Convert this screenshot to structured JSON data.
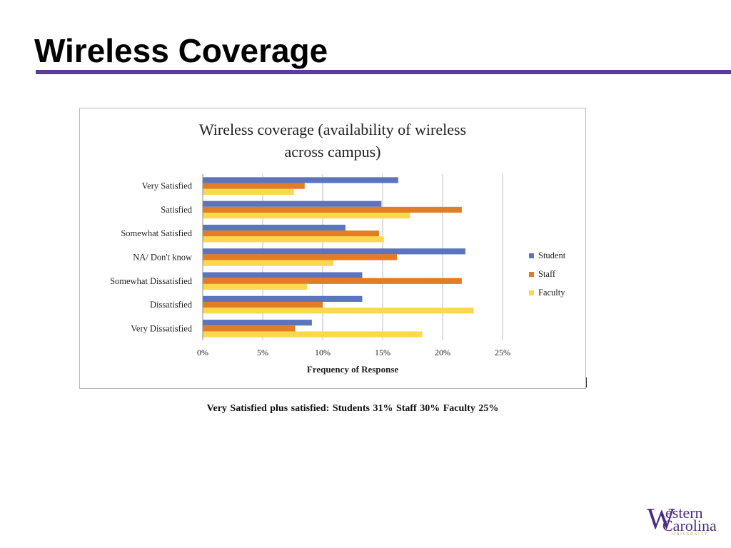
{
  "slide": {
    "title": "Wireless Coverage",
    "summary": "Very Satisfied plus satisfied: Students 31%   Staff 30%   Faculty 25%"
  },
  "logo": {
    "mark": "W",
    "line1": "estern",
    "line2": "Carolina",
    "line3": "UNIVERSITY"
  },
  "colors": {
    "title_rule": "#5b3b9a",
    "student": "#5b74c0",
    "staff": "#e37d24",
    "faculty": "#fcd94a",
    "grid": "#bfbfbf"
  },
  "chart_data": {
    "type": "bar",
    "orientation": "horizontal",
    "title": "Wireless coverage (availability of wireless\nacross campus)",
    "xlabel": "Frequency of Response",
    "ylabel": "",
    "categories": [
      "Very Satisfied",
      "Satisfied",
      "Somewhat Satisfied",
      "NA/ Don't know",
      "Somewhat Dissatisfied",
      "Dissatisfied",
      "Very Dissatisfied"
    ],
    "series": [
      {
        "name": "Student",
        "color": "#5b74c0",
        "values": [
          16.3,
          14.9,
          11.9,
          21.9,
          13.3,
          13.3,
          9.1
        ]
      },
      {
        "name": "Staff",
        "color": "#e37d24",
        "values": [
          8.5,
          21.6,
          14.7,
          16.2,
          21.6,
          10.0,
          7.7
        ]
      },
      {
        "name": "Faculty",
        "color": "#fcd94a",
        "values": [
          7.6,
          17.3,
          15.1,
          10.9,
          8.7,
          22.6,
          18.3
        ]
      }
    ],
    "xlim": [
      0,
      25
    ],
    "xticks": [
      "0%",
      "5%",
      "10%",
      "15%",
      "20%",
      "25%"
    ],
    "grid": true,
    "legend": "right"
  }
}
